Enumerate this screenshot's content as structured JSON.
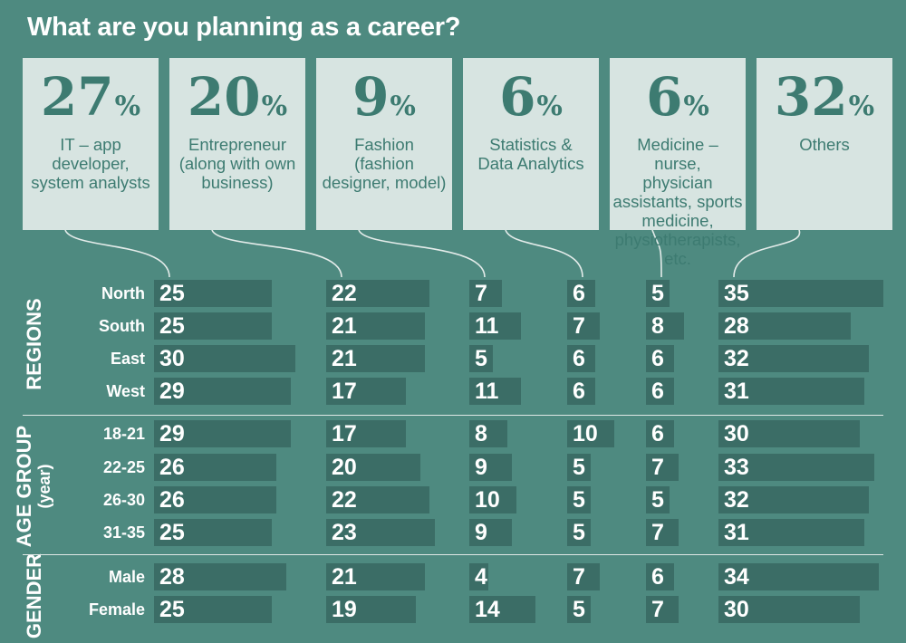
{
  "title": "What are you planning as a career?",
  "colors": {
    "background": "#4e8a80",
    "box": "#d7e4e1",
    "box_text": "#3d7b71",
    "bar": "#3b6d66",
    "text": "#ffffff"
  },
  "chart_data": {
    "type": "bar",
    "title": "What are you planning as a career?",
    "categories": [
      {
        "pct": "27",
        "label_lines": [
          "IT – app",
          "developer,",
          "system analysts"
        ]
      },
      {
        "pct": "20",
        "label_lines": [
          "Entrepreneur",
          "(along with own",
          "business)"
        ]
      },
      {
        "pct": "9",
        "label_lines": [
          "Fashion",
          "(fashion",
          "designer, model)"
        ]
      },
      {
        "pct": "6",
        "label_lines": [
          "Statistics &",
          "Data Analytics"
        ]
      },
      {
        "pct": "6",
        "label_lines": [
          "Medicine – nurse,",
          "physician",
          "assistants, sports",
          "medicine,",
          "physiotherapists,",
          "etc."
        ]
      },
      {
        "pct": "32",
        "label_lines": [
          "Others"
        ]
      }
    ],
    "percent_sign": "%",
    "groups": [
      {
        "name": "REGIONS",
        "rows": [
          {
            "label": "North",
            "values": [
              25,
              22,
              7,
              6,
              5,
              35
            ]
          },
          {
            "label": "South",
            "values": [
              25,
              21,
              11,
              7,
              8,
              28
            ]
          },
          {
            "label": "East",
            "values": [
              30,
              21,
              5,
              6,
              6,
              32
            ]
          },
          {
            "label": "West",
            "values": [
              29,
              17,
              11,
              6,
              6,
              31
            ]
          }
        ]
      },
      {
        "name": "AGE GROUP",
        "subname": "(year)",
        "rows": [
          {
            "label": "18-21",
            "values": [
              29,
              17,
              8,
              10,
              6,
              30
            ]
          },
          {
            "label": "22-25",
            "values": [
              26,
              20,
              9,
              5,
              7,
              33
            ]
          },
          {
            "label": "26-30",
            "values": [
              26,
              22,
              10,
              5,
              5,
              32
            ]
          },
          {
            "label": "31-35",
            "values": [
              25,
              23,
              9,
              5,
              7,
              31
            ]
          }
        ]
      },
      {
        "name": "GENDER",
        "rows": [
          {
            "label": "Male",
            "values": [
              28,
              21,
              4,
              7,
              6,
              34
            ]
          },
          {
            "label": "Female",
            "values": [
              25,
              19,
              14,
              5,
              7,
              30
            ]
          }
        ]
      }
    ]
  }
}
